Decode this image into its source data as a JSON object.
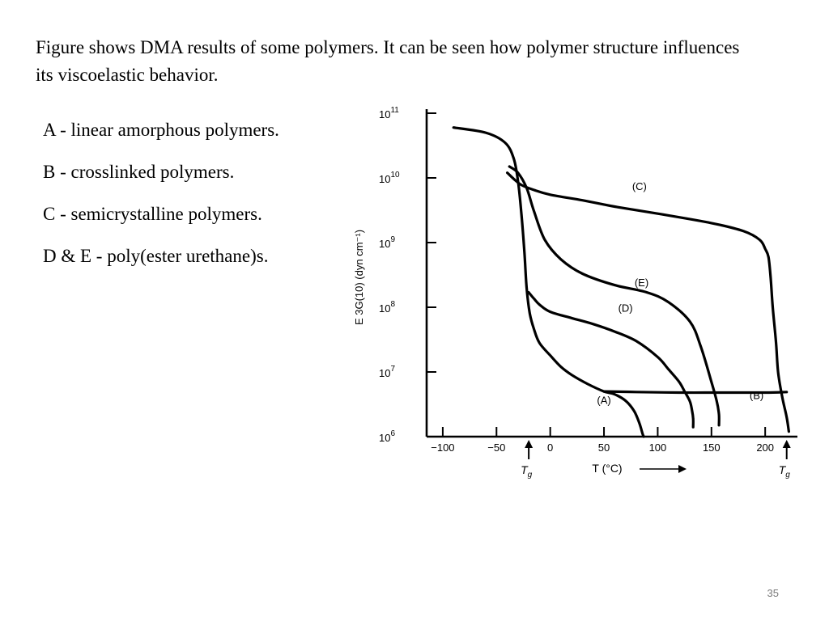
{
  "slide": {
    "intro_text": "Figure shows DMA results of some polymers. It can be seen how polymer structure influences its viscoelastic behavior.",
    "legend": [
      "A - linear amorphous polymers.",
      "B - crosslinked polymers.",
      "C - semicrystalline polymers.",
      "D & E - poly(ester urethane)s."
    ],
    "page_number": "35"
  },
  "chart_data": {
    "type": "line",
    "title": "",
    "xlabel": "T (°C)",
    "ylabel": "E 3G(10)  (dyn cm⁻¹)",
    "y_scale": "log",
    "xlim": [
      -115,
      230
    ],
    "ylim": [
      1000000,
      100000000000
    ],
    "x_ticks": [
      -100,
      -50,
      0,
      50,
      100,
      150,
      200
    ],
    "x_tick_labels": [
      "−100",
      "−50",
      "0",
      "50",
      "100",
      "150",
      "200"
    ],
    "y_ticks": [
      1000000,
      10000000,
      100000000,
      1000000000,
      10000000000,
      100000000000
    ],
    "y_tick_labels": [
      {
        "base": "10",
        "exp": "6"
      },
      {
        "base": "10",
        "exp": "7"
      },
      {
        "base": "10",
        "exp": "8"
      },
      {
        "base": "10",
        "exp": "9"
      },
      {
        "base": "10",
        "exp": "10"
      },
      {
        "base": "10",
        "exp": "11"
      }
    ],
    "tg_markers": [
      {
        "label": "T",
        "sub": "g",
        "x": -20
      },
      {
        "label": "T",
        "sub": "g",
        "x": 220
      }
    ],
    "grid": false,
    "series": [
      {
        "name": "(A)",
        "x": [
          -90,
          -60,
          -42,
          -34,
          -30,
          -27,
          -24,
          -22,
          -19,
          -15,
          -10,
          0,
          10,
          20,
          35,
          50,
          60,
          70,
          78,
          83,
          86,
          87
        ],
        "y": [
          60000000000,
          50000000000,
          35000000000,
          20000000000,
          9000000000,
          3000000000,
          700000000,
          200000000,
          80000000,
          45000000,
          28000000,
          18000000,
          12000000,
          9000000,
          6500000,
          5000000,
          4500000,
          3600000,
          2500000,
          1600000,
          1100000,
          1000000
        ]
      },
      {
        "name": "(B)",
        "x": [
          50,
          80,
          120,
          160,
          200,
          220
        ],
        "y": [
          5000000,
          4900000,
          4800000,
          4800000,
          4800000,
          4900000
        ]
      },
      {
        "name": "(C)",
        "x": [
          -40,
          -28,
          -15,
          0,
          30,
          60,
          100,
          150,
          180,
          195,
          200,
          203,
          205,
          207,
          210,
          212,
          216,
          220,
          222
        ],
        "y": [
          12000000000,
          8000000000,
          6500000000,
          5500000000,
          4500000000,
          3600000000,
          2800000000,
          2000000000,
          1500000000,
          1100000000,
          800000000,
          600000000,
          300000000,
          100000000,
          30000000,
          10000000,
          4000000,
          2000000,
          1200000
        ]
      },
      {
        "name": "(D)",
        "x": [
          -20,
          -15,
          -10,
          0,
          20,
          40,
          60,
          80,
          100,
          110,
          120,
          125,
          130,
          132,
          133,
          133
        ],
        "y": [
          170000000,
          135000000,
          110000000,
          85000000,
          68000000,
          55000000,
          42000000,
          30000000,
          17000000,
          11000000,
          7000000,
          5000000,
          3500000,
          2500000,
          1900000,
          1400000
        ]
      },
      {
        "name": "(E)",
        "x": [
          -38,
          -30,
          -22,
          -15,
          -5,
          10,
          30,
          60,
          90,
          110,
          130,
          140,
          150,
          155,
          157,
          157
        ],
        "y": [
          15000000000,
          12000000000,
          7000000000,
          3000000000,
          1100000000,
          550000000,
          330000000,
          220000000,
          170000000,
          120000000,
          60000000,
          25000000,
          7000000,
          3500000,
          2200000,
          1500000
        ]
      }
    ],
    "curve_labels": [
      {
        "text": "(C)",
        "x": 83,
        "y": 6500000000
      },
      {
        "text": "(E)",
        "x": 85,
        "y": 210000000
      },
      {
        "text": "(D)",
        "x": 70,
        "y": 85000000
      },
      {
        "text": "(A)",
        "x": 50,
        "y": 3200000
      },
      {
        "text": "(B)",
        "x": 192,
        "y": 3800000
      }
    ]
  }
}
